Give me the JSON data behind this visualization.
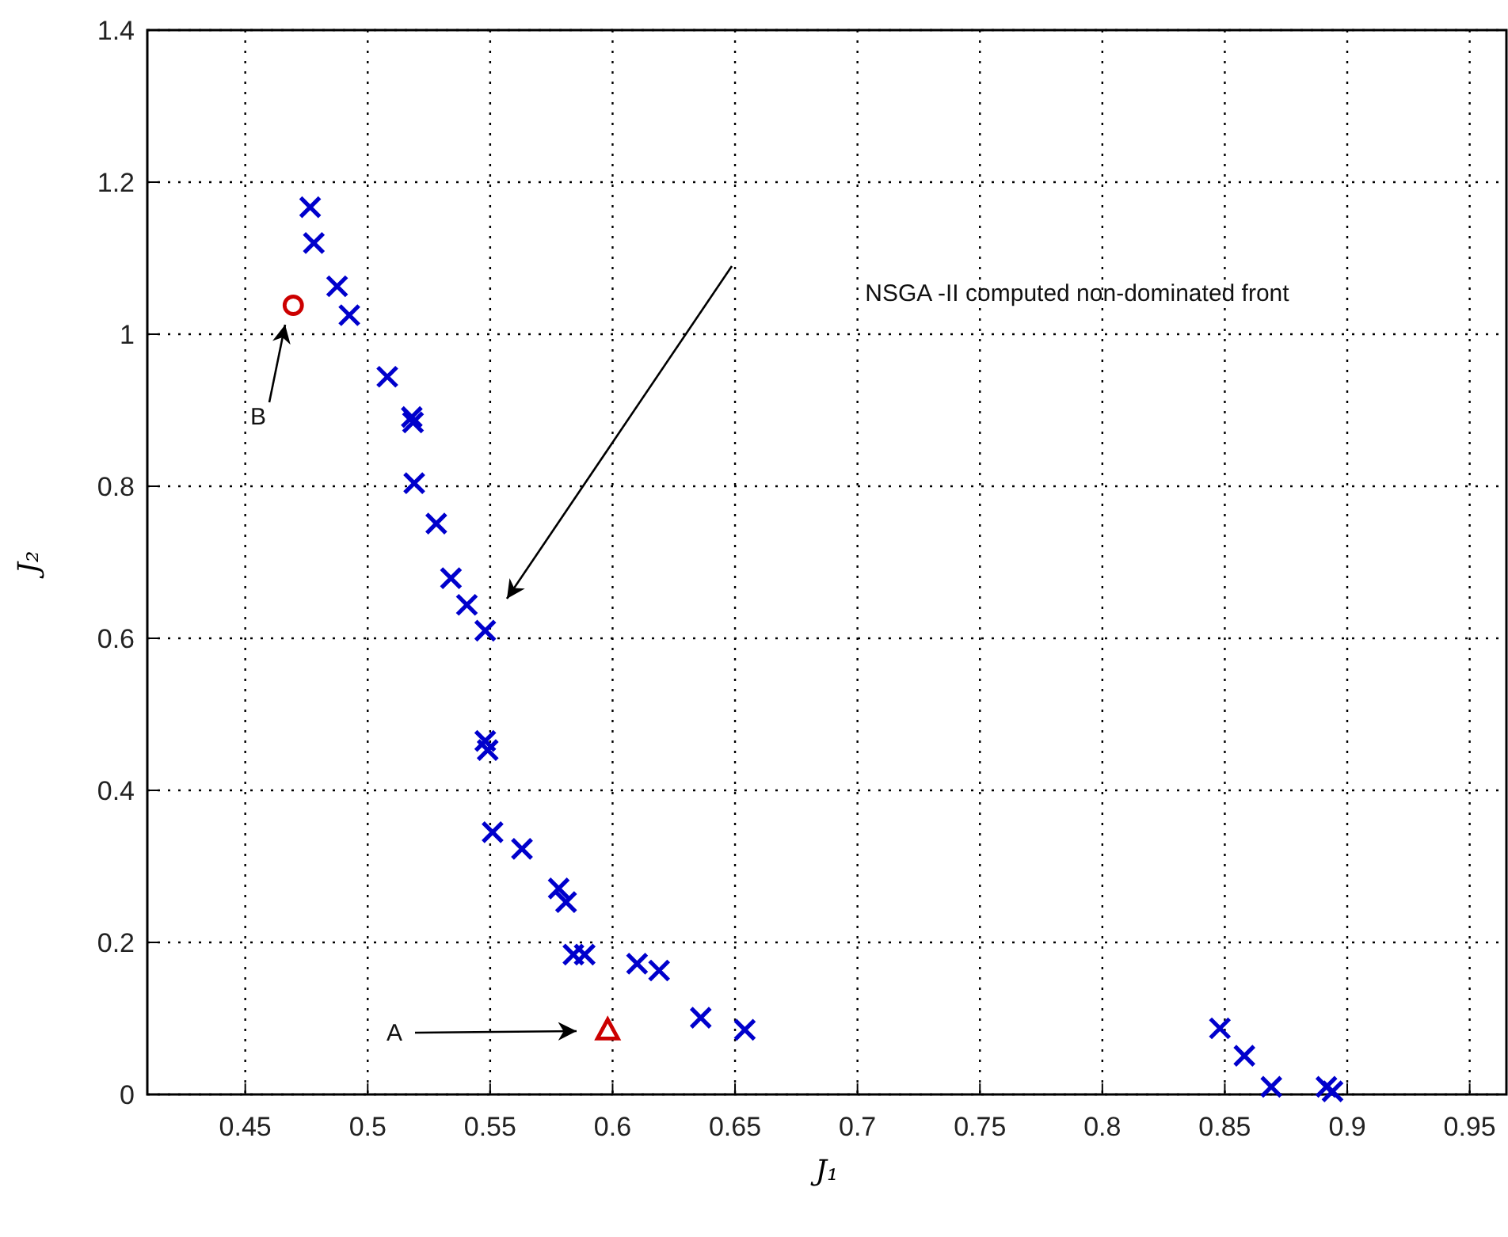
{
  "chart_data": {
    "type": "scatter",
    "xlabel": "J₁",
    "ylabel": "J₂",
    "xlim": [
      0.41,
      0.965
    ],
    "xticks": [
      0.45,
      0.5,
      0.55,
      0.6,
      0.65,
      0.7,
      0.75,
      0.8,
      0.85,
      0.9,
      0.95
    ],
    "ylim": [
      0,
      1.4
    ],
    "yticks": [
      0,
      0.2,
      0.4,
      0.6,
      0.8,
      1,
      1.2,
      1.4
    ],
    "grid": true,
    "series": [
      {
        "color": "#0000cc",
        "marker": "cross",
        "x": [
          0.4765,
          0.478,
          0.4875,
          0.4925,
          0.508,
          0.518,
          0.5185,
          0.519,
          0.528,
          0.534,
          0.5405,
          0.548,
          0.548,
          0.549,
          0.551,
          0.563,
          0.578,
          0.581,
          0.584,
          0.5886,
          0.61,
          0.619,
          0.636,
          0.654,
          0.848,
          0.858,
          0.869,
          0.8915,
          0.894
        ],
        "values": [
          1.167,
          1.12,
          1.063,
          1.025,
          0.944,
          0.891,
          0.884,
          0.804,
          0.751,
          0.679,
          0.644,
          0.61,
          0.465,
          0.453,
          0.345,
          0.323,
          0.271,
          0.253,
          0.184,
          0.184,
          0.172,
          0.163,
          0.101,
          0.085,
          0.087,
          0.051,
          0.01,
          0.01,
          0.004
        ]
      },
      {
        "color": "#cc0000",
        "marker": "triangle",
        "x": [
          0.598
        ],
        "values": [
          0.084
        ]
      },
      {
        "color": "#cc0000",
        "marker": "circle",
        "x": [
          0.4696
        ],
        "values": [
          1.038
        ]
      }
    ],
    "annotations": [
      "NSGA -II computed non-dominated front",
      "A",
      "B"
    ]
  }
}
